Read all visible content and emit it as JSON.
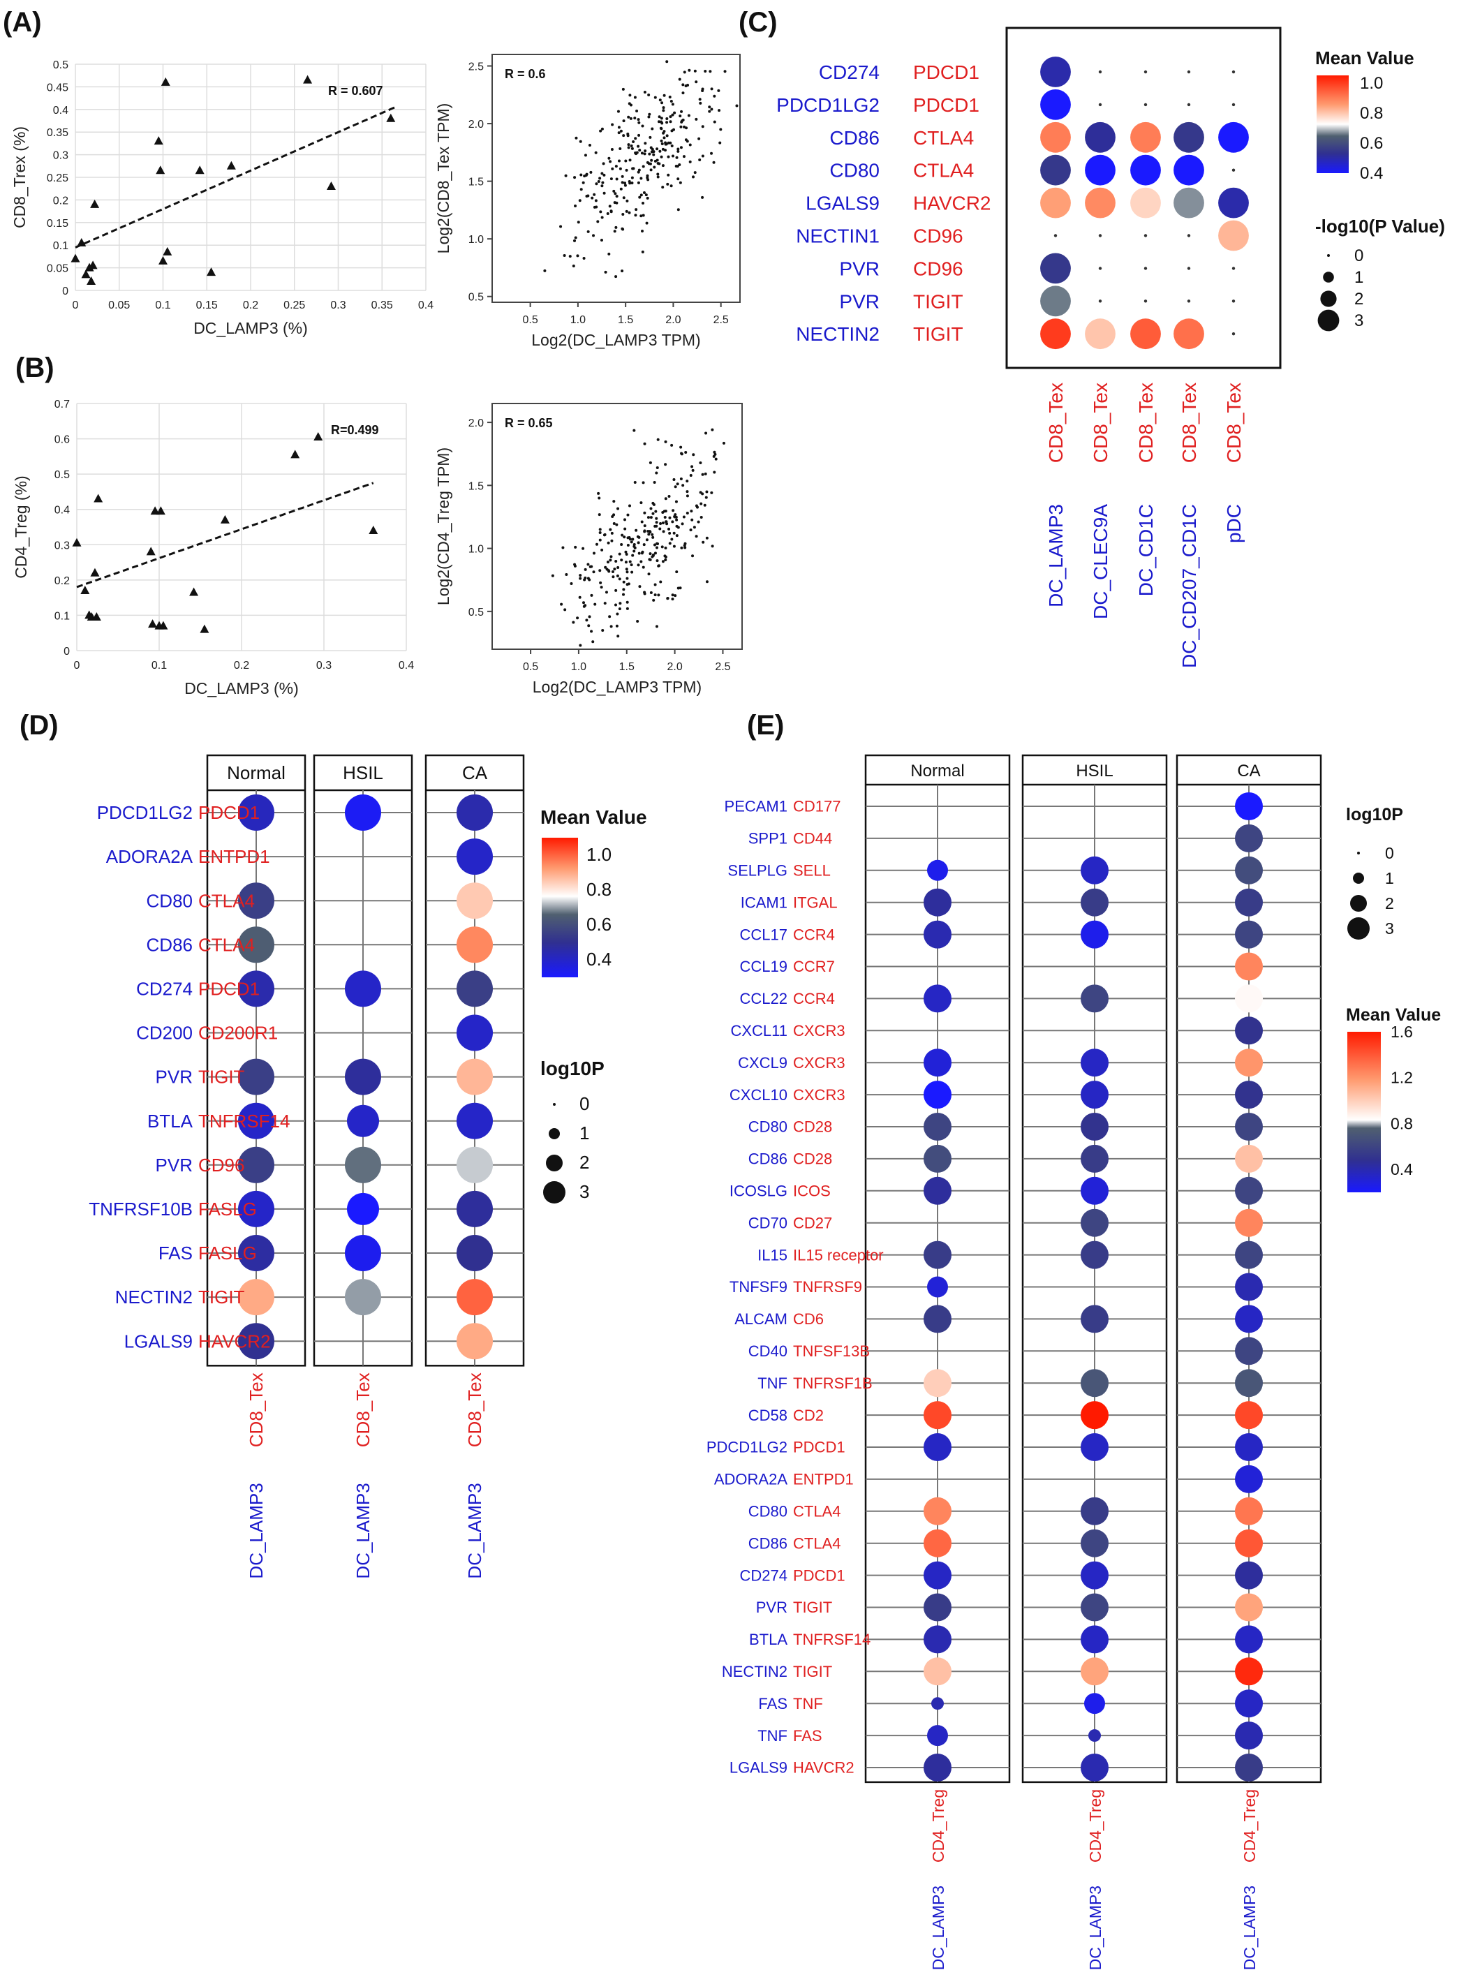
{
  "figure": {
    "panels": {
      "A": "(A)",
      "B": "(B)",
      "C": "(C)",
      "D": "(D)",
      "E": "(E)"
    },
    "colors": {
      "ligand": "#1a1acc",
      "receptor": "#e02020",
      "text": "#222222",
      "grid": "#dddddd"
    }
  },
  "chart_data": [
    {
      "id": "A-left",
      "type": "scatter",
      "xlabel": "DC_LAMP3 (%)",
      "ylabel": "CD8_Trex (%)",
      "xlim": [
        0,
        0.4
      ],
      "ylim": [
        0,
        0.5
      ],
      "xticks": [
        0,
        0.05,
        0.1,
        0.15,
        0.2,
        0.25,
        0.3,
        0.35,
        0.4
      ],
      "xtick_labels": [
        "0",
        "0.05",
        "0.1",
        "0.15",
        "0.2",
        "0.25",
        "0.3",
        "0.35",
        "0.4"
      ],
      "yticks": [
        0,
        0.05,
        0.1,
        0.15,
        0.2,
        0.25,
        0.3,
        0.35,
        0.4,
        0.45,
        0.5
      ],
      "ytick_labels": [
        "0",
        "0.05",
        "0.1",
        "0.15",
        "0.2",
        "0.25",
        "0.3",
        "0.35",
        "0.4",
        "0.45",
        "0.5"
      ],
      "points": [
        [
          0.0,
          0.07
        ],
        [
          0.007,
          0.105
        ],
        [
          0.012,
          0.035
        ],
        [
          0.016,
          0.05
        ],
        [
          0.018,
          0.02
        ],
        [
          0.02,
          0.055
        ],
        [
          0.022,
          0.19
        ],
        [
          0.095,
          0.33
        ],
        [
          0.097,
          0.265
        ],
        [
          0.1,
          0.065
        ],
        [
          0.103,
          0.46
        ],
        [
          0.105,
          0.085
        ],
        [
          0.142,
          0.265
        ],
        [
          0.155,
          0.04
        ],
        [
          0.178,
          0.275
        ],
        [
          0.265,
          0.465
        ],
        [
          0.292,
          0.23
        ],
        [
          0.36,
          0.38
        ]
      ],
      "fit_line": [
        [
          0.0,
          0.095
        ],
        [
          0.365,
          0.405
        ]
      ],
      "annotation": "R = 0.607",
      "marker": "triangle"
    },
    {
      "id": "A-right",
      "type": "scatter",
      "xlabel": "Log2(DC_LAMP3 TPM)",
      "ylabel": "Log2(CD8_Tex TPM)",
      "xlim": [
        0.1,
        2.7
      ],
      "ylim": [
        0.45,
        2.6
      ],
      "xticks": [
        0.5,
        1.0,
        1.5,
        2.0,
        2.5
      ],
      "xtick_labels": [
        "0.5",
        "1.0",
        "1.5",
        "2.0",
        "2.5"
      ],
      "yticks": [
        0.5,
        1.0,
        1.5,
        2.0,
        2.5
      ],
      "ytick_labels": [
        "0.5",
        "1.0",
        "1.5",
        "2.0",
        "2.5"
      ],
      "annotation": "R = 0.6",
      "n_points": 300,
      "r": 0.6,
      "mean": [
        1.7,
        1.7
      ],
      "sd": [
        0.42,
        0.38
      ],
      "seed": 7
    },
    {
      "id": "B-left",
      "type": "scatter",
      "xlabel": "DC_LAMP3 (%)",
      "ylabel": "CD4_Treg (%)",
      "xlim": [
        0,
        0.4
      ],
      "ylim": [
        0,
        0.7
      ],
      "xticks": [
        0,
        0.1,
        0.2,
        0.3,
        0.4
      ],
      "xtick_labels": [
        "0",
        "0.1",
        "0.2",
        "0.3",
        "0.4"
      ],
      "yticks": [
        0,
        0.1,
        0.2,
        0.3,
        0.4,
        0.5,
        0.6,
        0.7
      ],
      "ytick_labels": [
        "0",
        "0.1",
        "0.2",
        "0.3",
        "0.4",
        "0.5",
        "0.6",
        "0.7"
      ],
      "points": [
        [
          0.0,
          0.305
        ],
        [
          0.01,
          0.17
        ],
        [
          0.015,
          0.1
        ],
        [
          0.018,
          0.095
        ],
        [
          0.022,
          0.22
        ],
        [
          0.024,
          0.095
        ],
        [
          0.026,
          0.43
        ],
        [
          0.09,
          0.28
        ],
        [
          0.092,
          0.075
        ],
        [
          0.095,
          0.395
        ],
        [
          0.1,
          0.07
        ],
        [
          0.102,
          0.395
        ],
        [
          0.105,
          0.07
        ],
        [
          0.142,
          0.165
        ],
        [
          0.155,
          0.06
        ],
        [
          0.18,
          0.37
        ],
        [
          0.265,
          0.555
        ],
        [
          0.293,
          0.605
        ],
        [
          0.36,
          0.34
        ]
      ],
      "fit_line": [
        [
          0.0,
          0.18
        ],
        [
          0.36,
          0.475
        ]
      ],
      "annotation": "R=0.499",
      "marker": "triangle"
    },
    {
      "id": "B-right",
      "type": "scatter",
      "xlabel": "Log2(DC_LAMP3 TPM)",
      "ylabel": "Log2(CD4_Treg TPM)",
      "xlim": [
        0.1,
        2.7
      ],
      "ylim": [
        0.2,
        2.15
      ],
      "xticks": [
        0.5,
        1.0,
        1.5,
        2.0,
        2.5
      ],
      "xtick_labels": [
        "0.5",
        "1.0",
        "1.5",
        "2.0",
        "2.5"
      ],
      "yticks": [
        0.5,
        1.0,
        1.5,
        2.0
      ],
      "ytick_labels": [
        "0.5",
        "1.0",
        "1.5",
        "2.0"
      ],
      "annotation": "R = 0.65",
      "n_points": 300,
      "r": 0.65,
      "mean": [
        1.7,
        1.05
      ],
      "sd": [
        0.42,
        0.38
      ],
      "seed": 13
    },
    {
      "id": "C",
      "type": "heatmap",
      "rows": [
        {
          "ligand": "CD274",
          "receptor": "PDCD1"
        },
        {
          "ligand": "PDCD1LG2",
          "receptor": "PDCD1"
        },
        {
          "ligand": "CD86",
          "receptor": "CTLA4"
        },
        {
          "ligand": "CD80",
          "receptor": "CTLA4"
        },
        {
          "ligand": "LGALS9",
          "receptor": "HAVCR2"
        },
        {
          "ligand": "NECTIN1",
          "receptor": "CD96"
        },
        {
          "ligand": "PVR",
          "receptor": "CD96"
        },
        {
          "ligand": "PVR",
          "receptor": "TIGIT"
        },
        {
          "ligand": "NECTIN2",
          "receptor": "TIGIT"
        }
      ],
      "columns": [
        {
          "top": "CD8_Tex",
          "bottom": "DC_LAMP3"
        },
        {
          "top": "CD8_Tex",
          "bottom": "DC_CLEC9A"
        },
        {
          "top": "CD8_Tex",
          "bottom": "DC_CD1C"
        },
        {
          "top": "CD8_Tex",
          "bottom": "DC_CD207_CD1C"
        },
        {
          "top": "CD8_Tex",
          "bottom": "pDC"
        }
      ],
      "values": [
        [
          0.5,
          null,
          null,
          null,
          null
        ],
        [
          0.4,
          null,
          null,
          null,
          null
        ],
        [
          0.9,
          0.52,
          0.9,
          0.55,
          0.34
        ],
        [
          0.55,
          0.35,
          0.4,
          0.38,
          null
        ],
        [
          0.85,
          0.88,
          0.78,
          0.67,
          0.5
        ],
        [
          null,
          null,
          null,
          null,
          0.82
        ],
        [
          0.55,
          null,
          null,
          null,
          null
        ],
        [
          0.66,
          null,
          null,
          null,
          null
        ],
        [
          1.0,
          0.8,
          0.95,
          0.92,
          null
        ]
      ],
      "sizes": [
        [
          3,
          0,
          0,
          0,
          0
        ],
        [
          3,
          0,
          0,
          0,
          0
        ],
        [
          3,
          3,
          3,
          3,
          3
        ],
        [
          3,
          3,
          3,
          3,
          0
        ],
        [
          3,
          3,
          3,
          3,
          3
        ],
        [
          0,
          0,
          0,
          0,
          3
        ],
        [
          3,
          0,
          0,
          0,
          0
        ],
        [
          3,
          0,
          0,
          0,
          0
        ],
        [
          3,
          3,
          3,
          3,
          0
        ]
      ],
      "color_range": [
        0.4,
        1.05
      ],
      "color_ticks": [
        1.0,
        0.8,
        0.6,
        0.4
      ],
      "color_tick_labels": [
        "1.0",
        "0.8",
        "0.6",
        "0.4"
      ],
      "color_title": "Mean Value",
      "size_title": "-log10(P Value)",
      "size_levels": [
        0,
        1,
        2,
        3
      ],
      "size_labels": [
        "0",
        "1",
        "2",
        "3"
      ]
    },
    {
      "id": "D",
      "type": "heatmap",
      "panels": [
        "Normal",
        "HSIL",
        "CA"
      ],
      "col_ligand": "DC_LAMP3",
      "col_receptor": "CD8_Tex",
      "rows": [
        {
          "ligand": "PDCD1LG2",
          "receptor": "PDCD1"
        },
        {
          "ligand": "ADORA2A",
          "receptor": "ENTPD1"
        },
        {
          "ligand": "CD80",
          "receptor": "CTLA4"
        },
        {
          "ligand": "CD86",
          "receptor": "CTLA4"
        },
        {
          "ligand": "CD274",
          "receptor": "PDCD1"
        },
        {
          "ligand": "CD200",
          "receptor": "CD200R1"
        },
        {
          "ligand": "PVR",
          "receptor": "TIGIT"
        },
        {
          "ligand": "BTLA",
          "receptor": "TNFRSF14"
        },
        {
          "ligand": "PVR",
          "receptor": "CD96"
        },
        {
          "ligand": "TNFRSF10B",
          "receptor": "FASLG"
        },
        {
          "ligand": "FAS",
          "receptor": "FASLG"
        },
        {
          "ligand": "NECTIN2",
          "receptor": "TIGIT"
        },
        {
          "ligand": "LGALS9",
          "receptor": "HAVCR2"
        }
      ],
      "values": [
        [
          0.42,
          0.32,
          0.45
        ],
        [
          null,
          null,
          0.4
        ],
        [
          0.55,
          null,
          0.85
        ],
        [
          0.65,
          null,
          0.95
        ],
        [
          0.45,
          0.4,
          0.55
        ],
        [
          null,
          null,
          0.4
        ],
        [
          0.55,
          0.48,
          0.88
        ],
        [
          0.4,
          0.4,
          0.4
        ],
        [
          0.55,
          0.67,
          0.73
        ],
        [
          0.4,
          0.3,
          0.48
        ],
        [
          0.47,
          0.33,
          0.5
        ],
        [
          0.9,
          0.7,
          1.0
        ],
        [
          0.5,
          null,
          0.9
        ]
      ],
      "sizes": [
        [
          3,
          3,
          3
        ],
        [
          0,
          0,
          3
        ],
        [
          3,
          0,
          3
        ],
        [
          3,
          0,
          3
        ],
        [
          3,
          3,
          3
        ],
        [
          0,
          0,
          3
        ],
        [
          3,
          3,
          3
        ],
        [
          3,
          2.5,
          3
        ],
        [
          3,
          3,
          3
        ],
        [
          3,
          2.5,
          3
        ],
        [
          3,
          3,
          3
        ],
        [
          3,
          3,
          3
        ],
        [
          3,
          0,
          3
        ]
      ],
      "color_range": [
        0.3,
        1.1
      ],
      "color_ticks": [
        1.0,
        0.8,
        0.6,
        0.4
      ],
      "color_tick_labels": [
        "1.0",
        "0.8",
        "0.6",
        "0.4"
      ],
      "color_title": "Mean Value",
      "size_title": "log10P",
      "size_levels": [
        0,
        1,
        2,
        3
      ],
      "size_labels": [
        "0",
        "1",
        "2",
        "3"
      ]
    },
    {
      "id": "E",
      "type": "heatmap",
      "panels": [
        "Normal",
        "HSIL",
        "CA"
      ],
      "col_ligand": "DC_LAMP3",
      "col_receptor": "CD4_Treg",
      "rows": [
        {
          "ligand": "PECAM1",
          "receptor": "CD177"
        },
        {
          "ligand": "SPP1",
          "receptor": "CD44"
        },
        {
          "ligand": "SELPLG",
          "receptor": "SELL"
        },
        {
          "ligand": "ICAM1",
          "receptor": "ITGAL"
        },
        {
          "ligand": "CCL17",
          "receptor": "CCR4"
        },
        {
          "ligand": "CCL19",
          "receptor": "CCR7"
        },
        {
          "ligand": "CCL22",
          "receptor": "CCR4"
        },
        {
          "ligand": "CXCL11",
          "receptor": "CXCR3"
        },
        {
          "ligand": "CXCL9",
          "receptor": "CXCR3"
        },
        {
          "ligand": "CXCL10",
          "receptor": "CXCR3"
        },
        {
          "ligand": "CD80",
          "receptor": "CD28"
        },
        {
          "ligand": "CD86",
          "receptor": "CD28"
        },
        {
          "ligand": "ICOSLG",
          "receptor": "ICOS"
        },
        {
          "ligand": "CD70",
          "receptor": "CD27"
        },
        {
          "ligand": "IL15",
          "receptor": "IL15 receptor"
        },
        {
          "ligand": "TNFSF9",
          "receptor": "TNFRSF9"
        },
        {
          "ligand": "ALCAM",
          "receptor": "CD6"
        },
        {
          "ligand": "CD40",
          "receptor": "TNFSF13B"
        },
        {
          "ligand": "TNF",
          "receptor": "TNFRSF1B"
        },
        {
          "ligand": "CD58",
          "receptor": "CD2"
        },
        {
          "ligand": "PDCD1LG2",
          "receptor": "PDCD1"
        },
        {
          "ligand": "ADORA2A",
          "receptor": "ENTPD1"
        },
        {
          "ligand": "CD80",
          "receptor": "CTLA4"
        },
        {
          "ligand": "CD86",
          "receptor": "CTLA4"
        },
        {
          "ligand": "CD274",
          "receptor": "PDCD1"
        },
        {
          "ligand": "PVR",
          "receptor": "TIGIT"
        },
        {
          "ligand": "BTLA",
          "receptor": "TNFRSF14"
        },
        {
          "ligand": "NECTIN2",
          "receptor": "TIGIT"
        },
        {
          "ligand": "FAS",
          "receptor": "TNF"
        },
        {
          "ligand": "TNF",
          "receptor": "FAS"
        },
        {
          "ligand": "LGALS9",
          "receptor": "HAVCR2"
        }
      ],
      "values": [
        [
          null,
          null,
          0.2
        ],
        [
          null,
          null,
          0.6
        ],
        [
          0.25,
          0.35,
          0.65
        ],
        [
          0.45,
          0.55,
          0.55
        ],
        [
          0.4,
          0.25,
          0.6
        ],
        [
          null,
          null,
          1.25
        ],
        [
          0.35,
          0.6,
          0.85
        ],
        [
          null,
          null,
          0.5
        ],
        [
          0.3,
          0.35,
          1.2
        ],
        [
          0.15,
          0.35,
          0.5
        ],
        [
          0.6,
          0.5,
          0.6
        ],
        [
          0.65,
          0.55,
          1.05
        ],
        [
          0.45,
          0.3,
          0.6
        ],
        [
          null,
          0.6,
          1.25
        ],
        [
          0.55,
          0.55,
          0.6
        ],
        [
          0.3,
          null,
          0.4
        ],
        [
          0.55,
          0.55,
          0.35
        ],
        [
          null,
          null,
          0.6
        ],
        [
          1.0,
          0.7,
          0.7
        ],
        [
          1.45,
          1.6,
          1.45
        ],
        [
          0.35,
          0.35,
          0.35
        ],
        [
          null,
          null,
          0.3
        ],
        [
          1.25,
          0.55,
          1.3
        ],
        [
          1.35,
          0.6,
          1.4
        ],
        [
          0.35,
          0.35,
          0.45
        ],
        [
          0.55,
          0.6,
          1.15
        ],
        [
          0.4,
          0.35,
          0.35
        ],
        [
          1.05,
          1.15,
          1.55
        ],
        [
          0.4,
          0.25,
          0.35
        ],
        [
          0.35,
          0.4,
          0.4
        ],
        [
          0.45,
          0.4,
          0.55
        ]
      ],
      "sizes": [
        [
          0,
          0,
          3
        ],
        [
          0,
          0,
          3
        ],
        [
          2,
          3,
          3
        ],
        [
          3,
          3,
          3
        ],
        [
          3,
          3,
          3
        ],
        [
          0,
          0,
          3
        ],
        [
          3,
          3,
          3
        ],
        [
          0,
          0,
          3
        ],
        [
          3,
          3,
          3
        ],
        [
          3,
          3,
          3
        ],
        [
          3,
          3,
          3
        ],
        [
          3,
          3,
          3
        ],
        [
          3,
          3,
          3
        ],
        [
          0,
          3,
          3
        ],
        [
          3,
          3,
          3
        ],
        [
          2,
          0,
          3
        ],
        [
          3,
          3,
          3
        ],
        [
          0,
          0,
          3
        ],
        [
          3,
          3,
          3
        ],
        [
          3,
          3,
          3
        ],
        [
          3,
          3,
          3
        ],
        [
          0,
          0,
          3
        ],
        [
          3,
          3,
          3
        ],
        [
          3,
          3,
          3
        ],
        [
          3,
          3,
          3
        ],
        [
          3,
          3,
          3
        ],
        [
          3,
          3,
          3
        ],
        [
          3,
          3,
          3
        ],
        [
          0.8,
          2,
          3
        ],
        [
          2,
          0.8,
          3
        ],
        [
          3,
          3,
          3
        ]
      ],
      "color_range": [
        0.2,
        1.6
      ],
      "color_ticks": [
        1.6,
        1.2,
        0.8,
        0.4
      ],
      "color_tick_labels": [
        "1.6",
        "1.2",
        "0.8",
        "0.4"
      ],
      "color_title": "Mean Value",
      "size_title": "log10P",
      "size_levels": [
        0,
        1,
        2,
        3
      ],
      "size_labels": [
        "0",
        "1",
        "2",
        "3"
      ]
    }
  ]
}
